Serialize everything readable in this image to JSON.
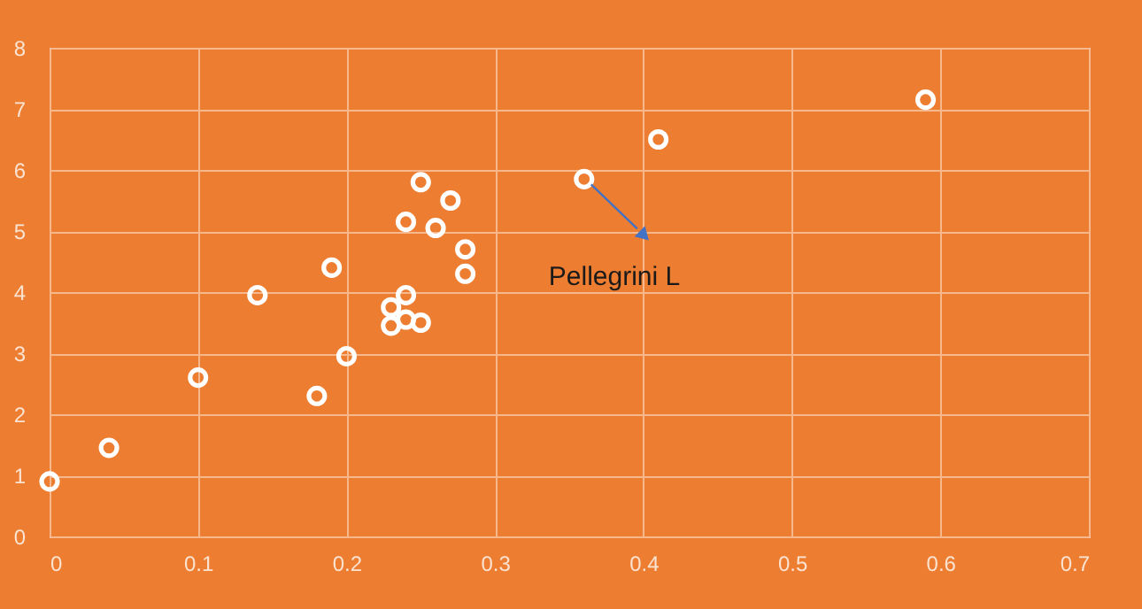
{
  "chart_data": {
    "type": "scatter",
    "x": [
      0,
      0.04,
      0.1,
      0.14,
      0.18,
      0.19,
      0.2,
      0.23,
      0.23,
      0.24,
      0.24,
      0.25,
      0.24,
      0.25,
      0.26,
      0.27,
      0.28,
      0.28,
      0.36,
      0.41,
      0.59
    ],
    "series": [
      {
        "color": "#ffffff",
        "values": [
          0.9,
          1.45,
          2.6,
          3.95,
          2.3,
          4.4,
          2.95,
          3.75,
          3.45,
          3.95,
          3.55,
          3.5,
          5.15,
          5.8,
          5.05,
          5.5,
          4.7,
          4.3,
          5.85,
          6.5,
          7.15
        ]
      }
    ],
    "xlim": [
      0,
      0.7
    ],
    "xticks": [
      0,
      0.1,
      0.2,
      0.3,
      0.4,
      0.5,
      0.6,
      0.7
    ],
    "ylim": [
      0,
      8
    ],
    "yticks": [
      0,
      1,
      2,
      3,
      4,
      5,
      6,
      7,
      8
    ],
    "grid": true,
    "legend": false,
    "marker": "circle",
    "annotations": [
      {
        "text": "Pellegrini L",
        "x": 0.36,
        "y": 5.85
      }
    ]
  }
}
